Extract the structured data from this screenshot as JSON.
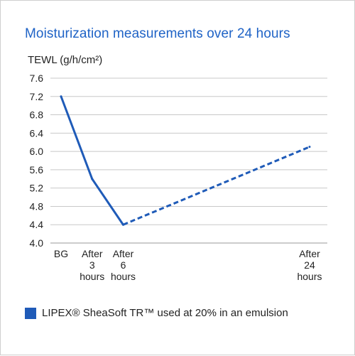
{
  "chart_data": {
    "type": "line",
    "title": "Moisturization measurements over 24 hours",
    "ylabel": "TEWL (g/h/cm²)",
    "xlabel": "",
    "ylim": [
      4.0,
      7.6
    ],
    "yticks": [
      "7.6",
      "7.2",
      "6.8",
      "6.4",
      "6.0",
      "5.6",
      "5.2",
      "4.8",
      "4.4",
      "4.0"
    ],
    "categories": [
      [
        "BG"
      ],
      [
        "After",
        "3",
        "hours"
      ],
      [
        "After",
        "6",
        "hours"
      ],
      [
        "After",
        "24",
        "hours"
      ]
    ],
    "category_hours": [
      0,
      3,
      6,
      24
    ],
    "series": [
      {
        "name": "LIPEX® SheaSoft TR™ used at 20% in an emulsion",
        "values": [
          7.2,
          5.4,
          4.4,
          6.1
        ],
        "solid_segments": [
          [
            0,
            1
          ],
          [
            1,
            2
          ]
        ],
        "dashed_segments": [
          [
            2,
            3
          ]
        ]
      }
    ],
    "grid": true,
    "legend_position": "bottom-left",
    "colors": {
      "title": "#1f63c6",
      "series": "#1f5bb8",
      "grid": "#c8c8c8",
      "axis": "#9a9a9a",
      "text": "#222222"
    }
  },
  "legend": {
    "label": "LIPEX® SheaSoft TR™ used at 20% in an emulsion"
  }
}
